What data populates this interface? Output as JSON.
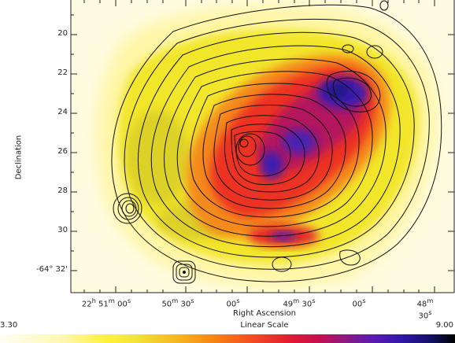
{
  "axes": {
    "ylabel": "Declination",
    "xlabel": "Right Ascension",
    "y_ticks": [
      "20",
      "22",
      "24",
      "26",
      "28",
      "30",
      "-64° 32'"
    ],
    "x_ticks": [
      {
        "h": "22",
        "hs": "h",
        "m": "51",
        "ms": "m",
        "s": "00",
        "ss": "s"
      },
      {
        "h": "",
        "hs": "",
        "m": "50",
        "ms": "m",
        "s": "30",
        "ss": "s"
      },
      {
        "h": "",
        "hs": "",
        "m": "",
        "ms": "",
        "s": "00",
        "ss": "s"
      },
      {
        "h": "",
        "hs": "",
        "m": "49",
        "ms": "m",
        "s": "30",
        "ss": "s"
      },
      {
        "h": "",
        "hs": "",
        "m": "",
        "ms": "",
        "s": "00",
        "ss": "s"
      },
      {
        "h": "",
        "hs": "",
        "m": "48",
        "ms": "m",
        "s": "30",
        "ss": "s"
      }
    ]
  },
  "colorbar": {
    "min_label": "3.30",
    "max_label": "9.00",
    "scale_label": "Linear Scale"
  }
}
